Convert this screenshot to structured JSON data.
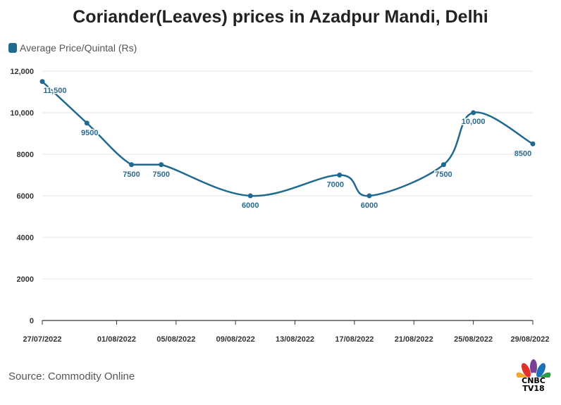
{
  "title": "Coriander(Leaves) prices in Azadpur Mandi, Delhi",
  "source": "Source: Commodity Online",
  "logo": {
    "line1": "CNBC",
    "line2": "TV18"
  },
  "colors": {
    "series": "#1f6a8e",
    "grid": "#e6e6e6",
    "axis": "#333333",
    "label": "#2b6a8f"
  },
  "chart_data": {
    "type": "line",
    "title": "Coriander(Leaves) prices in Azadpur Mandi, Delhi",
    "xlabel": "",
    "ylabel": "",
    "ylim": [
      0,
      12000
    ],
    "yticks": [
      {
        "value": 0,
        "label": "0"
      },
      {
        "value": 2000,
        "label": "2000"
      },
      {
        "value": 4000,
        "label": "4000"
      },
      {
        "value": 6000,
        "label": "6000"
      },
      {
        "value": 8000,
        "label": "8000"
      },
      {
        "value": 10000,
        "label": "10,000"
      },
      {
        "value": 12000,
        "label": "12,000"
      }
    ],
    "xticks": [
      {
        "day": 0,
        "label": "27/07/2022"
      },
      {
        "day": 5,
        "label": "01/08/2022"
      },
      {
        "day": 9,
        "label": "05/08/2022"
      },
      {
        "day": 13,
        "label": "09/08/2022"
      },
      {
        "day": 17,
        "label": "13/08/2022"
      },
      {
        "day": 21,
        "label": "17/08/2022"
      },
      {
        "day": 25,
        "label": "21/08/2022"
      },
      {
        "day": 29,
        "label": "25/08/2022"
      },
      {
        "day": 33,
        "label": "29/08/2022"
      }
    ],
    "xdomain": [
      0,
      33
    ],
    "legend": "top-left",
    "series": [
      {
        "name": "Average Price/Quintal (Rs)",
        "points": [
          {
            "day": 0,
            "value": 11500,
            "label": "11,500"
          },
          {
            "day": 3,
            "value": 9500,
            "label": "9500"
          },
          {
            "day": 6,
            "value": 7500,
            "label": "7500"
          },
          {
            "day": 8,
            "value": 7500,
            "label": "7500"
          },
          {
            "day": 14,
            "value": 6000,
            "label": "6000"
          },
          {
            "day": 20,
            "value": 7000,
            "label": "7000"
          },
          {
            "day": 22,
            "value": 6000,
            "label": "6000"
          },
          {
            "day": 27,
            "value": 7500,
            "label": "7500"
          },
          {
            "day": 29,
            "value": 10000,
            "label": "10,000"
          },
          {
            "day": 33,
            "value": 8500,
            "label": "8500"
          }
        ]
      }
    ]
  }
}
